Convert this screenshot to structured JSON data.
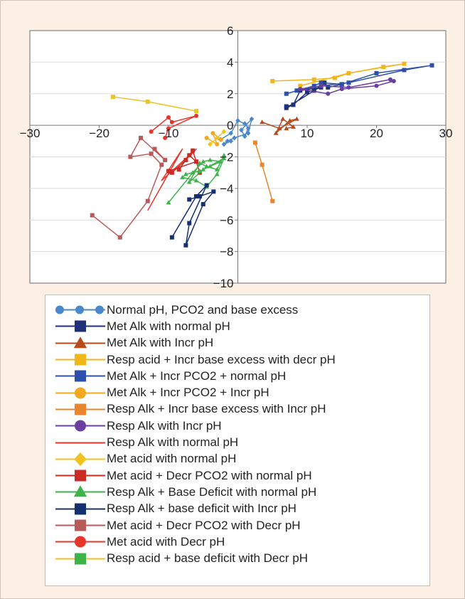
{
  "chart_data": {
    "type": "scatter",
    "xlim": [
      -30,
      30
    ],
    "ylim": [
      -10,
      6
    ],
    "xticks": [
      -30,
      -20,
      -10,
      0,
      10,
      20,
      30
    ],
    "xtick_labels": [
      "−30",
      "−20",
      "−10",
      "0",
      "10",
      "20",
      "30"
    ],
    "yticks": [
      -10,
      -8,
      -6,
      -4,
      -2,
      0,
      2,
      4,
      6
    ],
    "ytick_labels": [
      "−10",
      "−8",
      "−6",
      "−4",
      "−2",
      "0",
      "2",
      "4",
      "6"
    ],
    "grid": "horizontal",
    "legend_position": "bottom",
    "series": [
      {
        "name": "Normal pH, PCO2 and base excess",
        "color": "#4a88cc",
        "marker": "diamond",
        "x": [
          -2.5,
          -1,
          0,
          1,
          1.5,
          1,
          0.5,
          2,
          1.5,
          -0.5,
          -1.5,
          -2,
          -1
        ],
        "y": [
          -0.9,
          -0.5,
          0.3,
          0.1,
          -0.2,
          -0.7,
          -0.3,
          0.4,
          -0.5,
          -0.8,
          -1,
          -1.2,
          -1
        ]
      },
      {
        "name": "Met Alk with normal pH",
        "color": "#1f2f7a",
        "marker": "square",
        "x": [
          7,
          8,
          9,
          12,
          10,
          8,
          7,
          11,
          12.5,
          13,
          15
        ],
        "y": [
          1.2,
          1.3,
          2.2,
          2.4,
          2.1,
          1.3,
          1.1,
          2.2,
          2.7,
          2.4,
          2.6
        ]
      },
      {
        "name": "Met Alk with Incr pH",
        "color": "#b84a1e",
        "marker": "triangle",
        "x": [
          3.5,
          6,
          8.5,
          7.5,
          5.5,
          6.5,
          8,
          7
        ],
        "y": [
          0.2,
          -0.2,
          0.4,
          0.3,
          -0.5,
          0.4,
          -0.1,
          -0.2
        ]
      },
      {
        "name": "Resp acid + Incr base excess with decr pH",
        "color": "#f0b61a",
        "marker": "square",
        "x": [
          5,
          11,
          14,
          16,
          21,
          24,
          16,
          9
        ],
        "y": [
          2.8,
          2.9,
          3,
          3.3,
          3.7,
          3.9,
          3.3,
          2.5
        ]
      },
      {
        "name": "Met Alk + Incr PCO2 + normal pH",
        "color": "#2b4faa",
        "marker": "square",
        "x": [
          7,
          11,
          12,
          15,
          20,
          28,
          24,
          16,
          12,
          8.5
        ],
        "y": [
          2,
          2.5,
          2.7,
          2.6,
          3.3,
          3.8,
          3.5,
          2.7,
          2.5,
          2.2
        ]
      },
      {
        "name": "Met Alk + Incr PCO2 + Incr pH",
        "color": "#f2a81f",
        "marker": "circle",
        "x": [
          -4.5,
          -3,
          -3.6,
          -2.4
        ],
        "y": [
          -0.8,
          -1.2,
          -0.5,
          -0.9
        ]
      },
      {
        "name": "Resp Alk + Incr base excess with Incr pH",
        "color": "#e8852d",
        "marker": "square",
        "x": [
          2.5,
          3.5,
          5
        ],
        "y": [
          -1.1,
          -2.5,
          -4.8
        ]
      },
      {
        "name": "Resp Alk with Incr pH",
        "color": "#6b3fa0",
        "marker": "circle",
        "x": [
          22.5,
          20,
          15,
          13,
          9,
          12,
          16,
          22
        ],
        "y": [
          2.8,
          2.5,
          2.3,
          2,
          2.3,
          2.5,
          2.4,
          2.9
        ]
      },
      {
        "name": "Resp Alk with normal pH",
        "color": "#e8352a",
        "marker": "line",
        "x": [
          -13,
          -8,
          -11,
          -6,
          -7
        ],
        "y": [
          -5.4,
          -1.5,
          -3.5,
          -1.5,
          -2
        ]
      },
      {
        "name": "Met acid with normal pH",
        "color": "#f2c21e",
        "marker": "diamond",
        "x": [
          -4,
          -3,
          -2
        ],
        "y": [
          -1.2,
          -0.8,
          -0.4
        ]
      },
      {
        "name": "Met acid + Decr PCO2 with normal pH",
        "color": "#cc2a22",
        "marker": "square",
        "x": [
          -8.5,
          -7,
          -6,
          -10,
          -9.5,
          -7.5,
          -6.5,
          -5.5
        ],
        "y": [
          -2.8,
          -1.9,
          -2.3,
          -2.9,
          -3,
          -2.2,
          -1.6,
          -3
        ]
      },
      {
        "name": "Resp Alk + Base Deficit with normal pH",
        "color": "#3cb449",
        "marker": "triangle",
        "x": [
          -10,
          -6.5,
          -5,
          -4,
          -2.5,
          -4,
          -5.5,
          -7.5,
          -8,
          -6,
          -4.5,
          -3,
          -2,
          -5,
          -7,
          -5.5,
          -4.5,
          -3,
          -2
        ],
        "y": [
          -4.9,
          -3,
          -2.3,
          -2.2,
          -2.3,
          -2.6,
          -2.9,
          -3.1,
          -3.3,
          -3.5,
          -3.9,
          -3.1,
          -2.1,
          -2.8,
          -3.6,
          -2.4,
          -2.6,
          -2.8,
          -1.9
        ]
      },
      {
        "name": "Resp Alk + base deficit with Incr pH",
        "color": "#15306e",
        "marker": "square",
        "x": [
          -9.5,
          -6,
          -4.5,
          -7,
          -7.5,
          -5,
          -3.5,
          -5.5,
          -7
        ],
        "y": [
          -7.1,
          -4.5,
          -3.8,
          -6.2,
          -7.6,
          -5,
          -4.2,
          -4.5,
          -4.7
        ]
      },
      {
        "name": "Met acid + Decr PCO2 with Decr pH",
        "color": "#b85a5a",
        "marker": "square",
        "x": [
          -21,
          -17,
          -13,
          -11,
          -12.5,
          -15.5,
          -14,
          -10.5,
          -12
        ],
        "y": [
          -5.7,
          -7.1,
          -4.8,
          -2.5,
          -1.8,
          -2,
          -0.8,
          -2.2,
          -1.5
        ]
      },
      {
        "name": "Met acid with Decr pH",
        "color": "#e8352a",
        "marker": "circle",
        "x": [
          -12.5,
          -10,
          -9.5,
          -6,
          -10,
          -10.5
        ],
        "y": [
          -0.4,
          0.5,
          0.2,
          0.6,
          -0.2,
          -0.8
        ]
      },
      {
        "name": "Resp acid + base deficit with Decr pH",
        "color": "#e8c42a",
        "marker": "square",
        "x": [
          -18,
          -13,
          -6
        ],
        "y": [
          1.8,
          1.5,
          0.9
        ],
        "legend_color": "#f2c21e",
        "legend_marker_color": "#3cb449"
      }
    ]
  }
}
